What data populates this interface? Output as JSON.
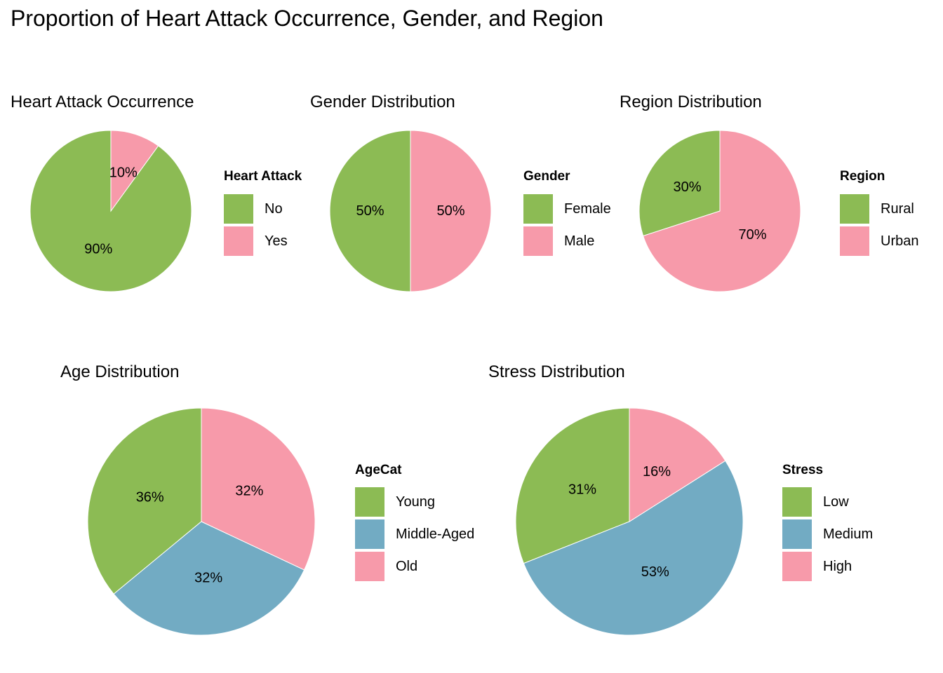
{
  "title": "Proportion of Heart Attack Occurrence, Gender, and Region",
  "colors": {
    "green": "#8cbb54",
    "pink": "#f79aaa",
    "blue": "#72abc3"
  },
  "chart_data": [
    {
      "type": "pie",
      "title": "Heart Attack Occurrence",
      "legend_title": "Heart Attack",
      "categories": [
        "No",
        "Yes"
      ],
      "values": [
        90,
        10
      ],
      "labels": [
        "90%",
        "10%"
      ],
      "colors": [
        "#8cbb54",
        "#f79aaa"
      ]
    },
    {
      "type": "pie",
      "title": "Gender Distribution",
      "legend_title": "Gender",
      "categories": [
        "Female",
        "Male"
      ],
      "values": [
        50,
        50
      ],
      "labels": [
        "50%",
        "50%"
      ],
      "colors": [
        "#8cbb54",
        "#f79aaa"
      ]
    },
    {
      "type": "pie",
      "title": "Region Distribution",
      "legend_title": "Region",
      "categories": [
        "Rural",
        "Urban"
      ],
      "values": [
        30,
        70
      ],
      "labels": [
        "30%",
        "70%"
      ],
      "colors": [
        "#8cbb54",
        "#f79aaa"
      ]
    },
    {
      "type": "pie",
      "title": "Age Distribution",
      "legend_title": "AgeCat",
      "categories": [
        "Young",
        "Middle-Aged",
        "Old"
      ],
      "values": [
        36,
        32,
        32
      ],
      "labels": [
        "36%",
        "32%",
        "32%"
      ],
      "colors": [
        "#8cbb54",
        "#72abc3",
        "#f79aaa"
      ]
    },
    {
      "type": "pie",
      "title": "Stress Distribution",
      "legend_title": "Stress",
      "categories": [
        "Low",
        "Medium",
        "High"
      ],
      "values": [
        31,
        53,
        16
      ],
      "labels": [
        "31%",
        "53%",
        "16%"
      ],
      "colors": [
        "#8cbb54",
        "#72abc3",
        "#f79aaa"
      ]
    }
  ]
}
